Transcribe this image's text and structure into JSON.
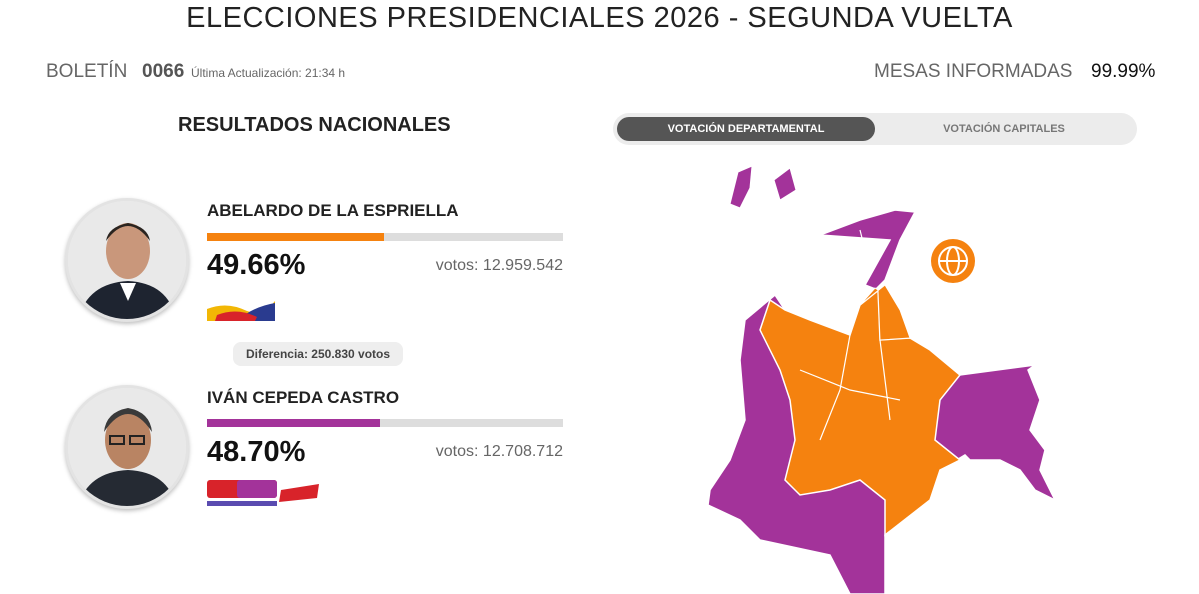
{
  "header": {
    "title": "ELECCIONES PRESIDENCIALES 2026 - SEGUNDA VUELTA",
    "bulletin_label": "BOLETÍN",
    "bulletin_number": "0066",
    "updated": "Última Actualización: 21:34 h",
    "tables_label": "MESAS INFORMADAS",
    "tables_value": "99.99%"
  },
  "section_title": "RESULTADOS NACIONALES",
  "tabs": [
    "VOTACIÓN DEPARTAMENTAL",
    "VOTACIÓN CAPITALES"
  ],
  "candidates": [
    {
      "name": "ABELARDO DE LA ESPRIELLA",
      "percent": 49.66,
      "percent_label": "49.66%",
      "votes_label": "votos:",
      "votes": "12.959.542",
      "color": "#f5820f"
    },
    {
      "name": "IVÁN CEPEDA CASTRO",
      "percent": 48.7,
      "percent_label": "48.70%",
      "votes_label": "votos:",
      "votes": "12.708.712",
      "color": "#a3339a"
    }
  ],
  "difference": "Diferencia: 250.830 votos"
}
